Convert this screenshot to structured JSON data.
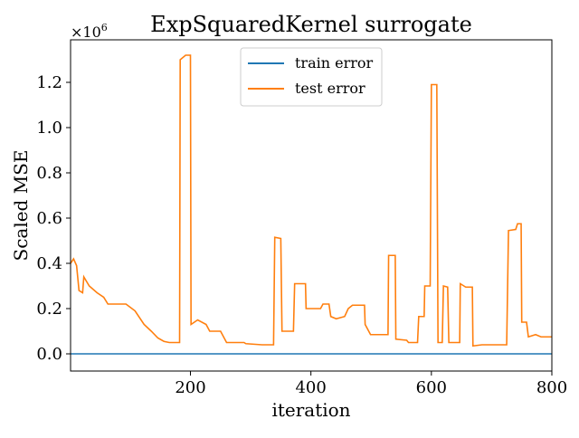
{
  "chart_data": {
    "type": "line",
    "title": "ExpSquaredKernel surrogate",
    "x_label": "iteration",
    "y_label": "Scaled MSE",
    "y_offset_label": {
      "base": "×10",
      "exponent": "6"
    },
    "xlim": [
      1,
      800
    ],
    "xticks": [
      200,
      400,
      600,
      800
    ],
    "ylim": [
      -0.076,
      1.388
    ],
    "yticks": [
      {
        "value": 0,
        "label": "0.0"
      },
      0.2,
      0.4,
      0.6,
      0.8,
      {
        "value": 1,
        "label": "1.0"
      },
      1.2
    ],
    "legend": "upper center",
    "series": [
      {
        "name": "train error",
        "color": "#1f77b4",
        "x": [
          1,
          800
        ],
        "values": [
          0,
          0
        ]
      },
      {
        "name": "test error",
        "color": "#ff7f0e",
        "x": [
          1,
          6,
          11,
          15,
          21,
          23,
          32,
          45,
          56,
          63,
          90,
          93,
          108,
          123,
          135,
          146,
          156,
          165,
          182,
          183,
          192,
          200,
          201,
          212,
          226,
          232,
          250,
          260,
          289,
          292,
          319,
          338,
          340,
          350,
          352,
          371,
          373,
          391,
          392,
          416,
          420,
          430,
          433,
          442,
          456,
          462,
          469,
          489,
          490,
          499,
          528,
          529,
          540,
          541,
          559,
          562,
          577,
          579,
          588,
          589,
          598,
          600,
          609,
          611,
          618,
          620,
          627,
          629,
          647,
          648,
          657,
          668,
          669,
          684,
          725,
          728,
          740,
          743,
          749,
          750,
          758,
          761,
          773,
          782,
          800
        ],
        "values": [
          0.4,
          0.42,
          0.39,
          0.28,
          0.27,
          0.34,
          0.3,
          0.27,
          0.25,
          0.22,
          0.22,
          0.22,
          0.19,
          0.13,
          0.1,
          0.07,
          0.055,
          0.05,
          0.05,
          1.3,
          1.32,
          1.32,
          0.13,
          0.15,
          0.13,
          0.1,
          0.1,
          0.05,
          0.05,
          0.045,
          0.04,
          0.04,
          0.515,
          0.51,
          0.1,
          0.1,
          0.31,
          0.31,
          0.2,
          0.2,
          0.22,
          0.22,
          0.165,
          0.155,
          0.165,
          0.2,
          0.215,
          0.215,
          0.13,
          0.085,
          0.085,
          0.435,
          0.435,
          0.065,
          0.06,
          0.05,
          0.05,
          0.165,
          0.165,
          0.3,
          0.3,
          1.19,
          1.19,
          0.05,
          0.05,
          0.3,
          0.295,
          0.05,
          0.05,
          0.31,
          0.295,
          0.295,
          0.035,
          0.04,
          0.04,
          0.545,
          0.55,
          0.575,
          0.575,
          0.14,
          0.14,
          0.075,
          0.085,
          0.075,
          0.075
        ]
      }
    ]
  }
}
